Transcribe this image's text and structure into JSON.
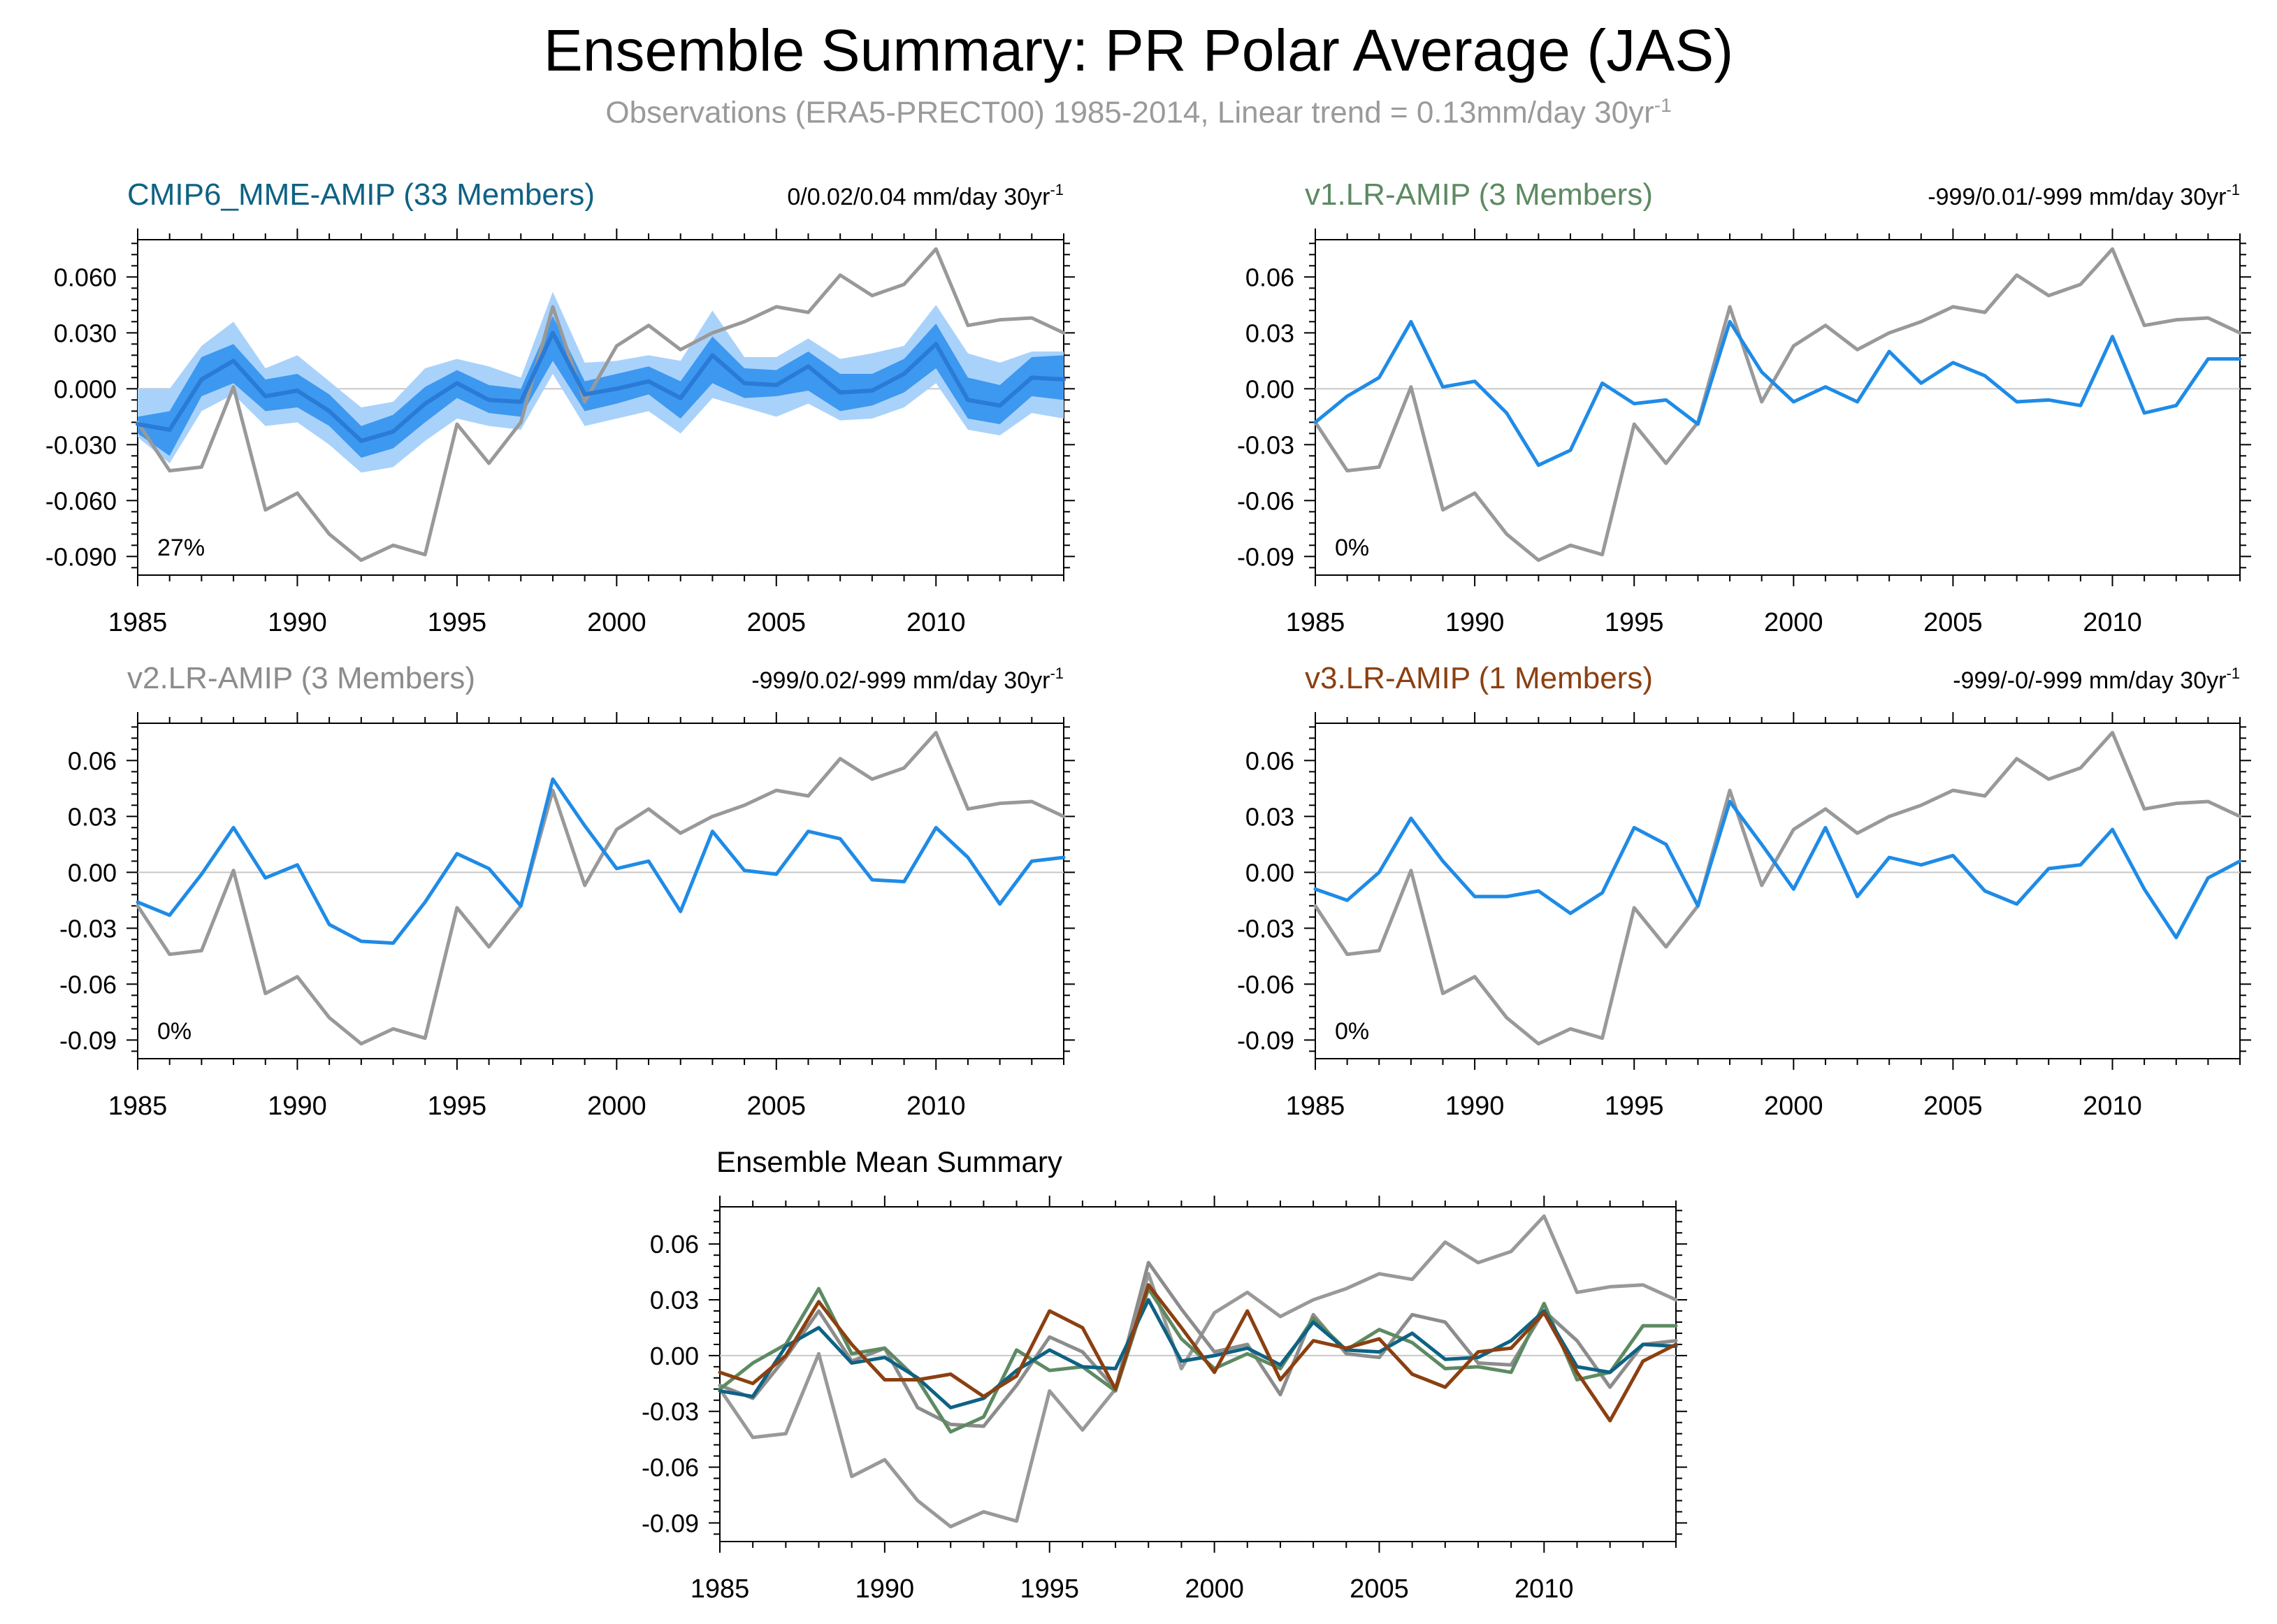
{
  "title": "Ensemble Summary: PR Polar Average (JAS)",
  "subtitle": "Observations (ERA5-PRECT00) 1985-2014, Linear trend = 0.13mm/day 30yr",
  "subtitle_sup": "-1",
  "colors": {
    "obs": "#999999",
    "model_line": "#1f8be6",
    "band_outer": "#a9d2fb",
    "band_inner": "#3d98f0",
    "mme_mean": "#2a7bd6",
    "cmip6": "#0e6284",
    "v1": "#5d8a62",
    "v2": "#8c8c8c",
    "v3": "#8b4011",
    "zero_line": "#c8c8c8"
  },
  "chart_data": [
    {
      "id": "cmip6",
      "type": "line",
      "title": "CMIP6_MME-AMIP (33 Members)",
      "title_color": "#0e6284",
      "trend_label": "0/0.02/0.04 mm/day 30yr",
      "trend_sup": "-1",
      "percent_label": "27%",
      "ylim": [
        -0.1,
        0.08
      ],
      "yticks": [
        "0.060",
        "0.030",
        "0.000",
        "-0.030",
        "-0.060",
        "-0.090"
      ],
      "ytick_values": [
        0.06,
        0.03,
        0.0,
        -0.03,
        -0.06,
        -0.09
      ],
      "xticks": [
        "1985",
        "1990",
        "1995",
        "2000",
        "2005",
        "2010"
      ],
      "x": [
        1985,
        1986,
        1987,
        1988,
        1989,
        1990,
        1991,
        1992,
        1993,
        1994,
        1995,
        1996,
        1997,
        1998,
        1999,
        2000,
        2001,
        2002,
        2003,
        2004,
        2005,
        2006,
        2007,
        2008,
        2009,
        2010,
        2011,
        2012,
        2013,
        2014
      ],
      "obs": [
        -0.018,
        -0.044,
        -0.042,
        0.001,
        -0.065,
        -0.056,
        -0.078,
        -0.092,
        -0.084,
        -0.089,
        -0.019,
        -0.04,
        -0.018,
        0.044,
        -0.007,
        0.023,
        0.034,
        0.021,
        0.03,
        0.036,
        0.044,
        0.041,
        0.061,
        0.05,
        0.056,
        0.075,
        0.034,
        0.037,
        0.038,
        0.03
      ],
      "band": {
        "mean": [
          -0.019,
          -0.022,
          0.005,
          0.015,
          -0.004,
          -0.001,
          -0.012,
          -0.028,
          -0.023,
          -0.008,
          0.003,
          -0.006,
          -0.007,
          0.03,
          -0.003,
          0.0,
          0.004,
          -0.005,
          0.018,
          0.003,
          0.002,
          0.012,
          -0.002,
          -0.001,
          0.008,
          0.024,
          -0.006,
          -0.009,
          0.006,
          0.005
        ],
        "inner_low": [
          -0.024,
          -0.036,
          -0.004,
          0.003,
          -0.012,
          -0.01,
          -0.02,
          -0.037,
          -0.032,
          -0.018,
          -0.005,
          -0.013,
          -0.015,
          0.015,
          -0.012,
          -0.008,
          -0.003,
          -0.016,
          0.003,
          -0.005,
          -0.004,
          -0.001,
          -0.012,
          -0.009,
          -0.002,
          0.011,
          -0.016,
          -0.019,
          -0.004,
          -0.006
        ],
        "inner_high": [
          -0.015,
          -0.012,
          0.017,
          0.024,
          0.005,
          0.008,
          -0.003,
          -0.02,
          -0.014,
          0.001,
          0.01,
          0.002,
          0.0,
          0.039,
          0.004,
          0.008,
          0.012,
          0.004,
          0.028,
          0.011,
          0.01,
          0.02,
          0.008,
          0.008,
          0.016,
          0.035,
          0.006,
          0.002,
          0.017,
          0.018
        ],
        "outer_low": [
          -0.026,
          -0.04,
          -0.012,
          -0.003,
          -0.02,
          -0.018,
          -0.03,
          -0.045,
          -0.042,
          -0.028,
          -0.016,
          -0.02,
          -0.022,
          0.008,
          -0.02,
          -0.016,
          -0.012,
          -0.024,
          -0.005,
          -0.01,
          -0.015,
          -0.008,
          -0.017,
          -0.016,
          -0.01,
          0.003,
          -0.022,
          -0.025,
          -0.013,
          -0.016
        ],
        "outer_high": [
          0.0,
          0.0,
          0.023,
          0.036,
          0.011,
          0.018,
          0.004,
          -0.01,
          -0.007,
          0.011,
          0.016,
          0.012,
          0.006,
          0.052,
          0.014,
          0.015,
          0.018,
          0.015,
          0.042,
          0.017,
          0.017,
          0.027,
          0.016,
          0.019,
          0.023,
          0.045,
          0.019,
          0.014,
          0.02,
          0.02
        ]
      }
    },
    {
      "id": "v1",
      "type": "line",
      "title": "v1.LR-AMIP (3 Members)",
      "title_color": "#5d8a62",
      "trend_label": "-999/0.01/-999 mm/day 30yr",
      "trend_sup": "-1",
      "percent_label": "0%",
      "ylim": [
        -0.1,
        0.08
      ],
      "yticks": [
        "0.06",
        "0.03",
        "0.00",
        "-0.03",
        "-0.06",
        "-0.09"
      ],
      "ytick_values": [
        0.06,
        0.03,
        0.0,
        -0.03,
        -0.06,
        -0.09
      ],
      "xticks": [
        "1985",
        "1990",
        "1995",
        "2000",
        "2005",
        "2010"
      ],
      "x": [
        1985,
        1986,
        1987,
        1988,
        1989,
        1990,
        1991,
        1992,
        1993,
        1994,
        1995,
        1996,
        1997,
        1998,
        1999,
        2000,
        2001,
        2002,
        2003,
        2004,
        2005,
        2006,
        2007,
        2008,
        2009,
        2010,
        2011,
        2012,
        2013,
        2014
      ],
      "obs": [
        -0.018,
        -0.044,
        -0.042,
        0.001,
        -0.065,
        -0.056,
        -0.078,
        -0.092,
        -0.084,
        -0.089,
        -0.019,
        -0.04,
        -0.018,
        0.044,
        -0.007,
        0.023,
        0.034,
        0.021,
        0.03,
        0.036,
        0.044,
        0.041,
        0.061,
        0.05,
        0.056,
        0.075,
        0.034,
        0.037,
        0.038,
        0.03
      ],
      "model": [
        -0.018,
        -0.004,
        0.006,
        0.036,
        0.001,
        0.004,
        -0.013,
        -0.041,
        -0.033,
        0.003,
        -0.008,
        -0.006,
        -0.019,
        0.036,
        0.009,
        -0.007,
        0.001,
        -0.007,
        0.02,
        0.003,
        0.014,
        0.007,
        -0.007,
        -0.006,
        -0.009,
        0.028,
        -0.013,
        -0.009,
        0.016,
        0.016
      ]
    },
    {
      "id": "v2",
      "type": "line",
      "title": "v2.LR-AMIP (3 Members)",
      "title_color": "#8c8c8c",
      "trend_label": "-999/0.02/-999 mm/day 30yr",
      "trend_sup": "-1",
      "percent_label": "0%",
      "ylim": [
        -0.1,
        0.08
      ],
      "yticks": [
        "0.06",
        "0.03",
        "0.00",
        "-0.03",
        "-0.06",
        "-0.09"
      ],
      "ytick_values": [
        0.06,
        0.03,
        0.0,
        -0.03,
        -0.06,
        -0.09
      ],
      "xticks": [
        "1985",
        "1990",
        "1995",
        "2000",
        "2005",
        "2010"
      ],
      "x": [
        1985,
        1986,
        1987,
        1988,
        1989,
        1990,
        1991,
        1992,
        1993,
        1994,
        1995,
        1996,
        1997,
        1998,
        1999,
        2000,
        2001,
        2002,
        2003,
        2004,
        2005,
        2006,
        2007,
        2008,
        2009,
        2010,
        2011,
        2012,
        2013,
        2014
      ],
      "obs": [
        -0.018,
        -0.044,
        -0.042,
        0.001,
        -0.065,
        -0.056,
        -0.078,
        -0.092,
        -0.084,
        -0.089,
        -0.019,
        -0.04,
        -0.018,
        0.044,
        -0.007,
        0.023,
        0.034,
        0.021,
        0.03,
        0.036,
        0.044,
        0.041,
        0.061,
        0.05,
        0.056,
        0.075,
        0.034,
        0.037,
        0.038,
        0.03
      ],
      "model": [
        -0.016,
        -0.023,
        -0.001,
        0.024,
        -0.003,
        0.004,
        -0.028,
        -0.037,
        -0.038,
        -0.016,
        0.01,
        0.002,
        -0.018,
        0.05,
        0.025,
        0.002,
        0.006,
        -0.021,
        0.022,
        0.001,
        -0.001,
        0.022,
        0.018,
        -0.004,
        -0.005,
        0.024,
        0.008,
        -0.017,
        0.006,
        0.008
      ]
    },
    {
      "id": "v3",
      "type": "line",
      "title": "v3.LR-AMIP (1 Members)",
      "title_color": "#8b4011",
      "trend_label": "-999/-0/-999 mm/day 30yr",
      "trend_sup": "-1",
      "percent_label": "0%",
      "ylim": [
        -0.1,
        0.08
      ],
      "yticks": [
        "0.06",
        "0.03",
        "0.00",
        "-0.03",
        "-0.06",
        "-0.09"
      ],
      "ytick_values": [
        0.06,
        0.03,
        0.0,
        -0.03,
        -0.06,
        -0.09
      ],
      "xticks": [
        "1985",
        "1990",
        "1995",
        "2000",
        "2005",
        "2010"
      ],
      "x": [
        1985,
        1986,
        1987,
        1988,
        1989,
        1990,
        1991,
        1992,
        1993,
        1994,
        1995,
        1996,
        1997,
        1998,
        1999,
        2000,
        2001,
        2002,
        2003,
        2004,
        2005,
        2006,
        2007,
        2008,
        2009,
        2010,
        2011,
        2012,
        2013,
        2014
      ],
      "obs": [
        -0.018,
        -0.044,
        -0.042,
        0.001,
        -0.065,
        -0.056,
        -0.078,
        -0.092,
        -0.084,
        -0.089,
        -0.019,
        -0.04,
        -0.018,
        0.044,
        -0.007,
        0.023,
        0.034,
        0.021,
        0.03,
        0.036,
        0.044,
        0.041,
        0.061,
        0.05,
        0.056,
        0.075,
        0.034,
        0.037,
        0.038,
        0.03
      ],
      "model": [
        -0.009,
        -0.015,
        0.0,
        0.029,
        0.006,
        -0.013,
        -0.013,
        -0.01,
        -0.022,
        -0.011,
        0.024,
        0.015,
        -0.018,
        0.038,
        0.015,
        -0.009,
        0.024,
        -0.013,
        0.008,
        0.004,
        0.009,
        -0.01,
        -0.017,
        0.002,
        0.004,
        0.023,
        -0.009,
        -0.035,
        -0.003,
        0.006
      ]
    },
    {
      "id": "summary",
      "type": "line",
      "title": "Ensemble Mean Summary",
      "title_color": "#000000",
      "ylim": [
        -0.1,
        0.08
      ],
      "yticks": [
        "0.06",
        "0.03",
        "0.00",
        "-0.03",
        "-0.06",
        "-0.09"
      ],
      "ytick_values": [
        0.06,
        0.03,
        0.0,
        -0.03,
        -0.06,
        -0.09
      ],
      "xticks": [
        "1985",
        "1990",
        "1995",
        "2000",
        "2005",
        "2010"
      ],
      "x": [
        1985,
        1986,
        1987,
        1988,
        1989,
        1990,
        1991,
        1992,
        1993,
        1994,
        1995,
        1996,
        1997,
        1998,
        1999,
        2000,
        2001,
        2002,
        2003,
        2004,
        2005,
        2006,
        2007,
        2008,
        2009,
        2010,
        2011,
        2012,
        2013,
        2014
      ],
      "series": [
        {
          "key": "obs",
          "values": [
            -0.018,
            -0.044,
            -0.042,
            0.001,
            -0.065,
            -0.056,
            -0.078,
            -0.092,
            -0.084,
            -0.089,
            -0.019,
            -0.04,
            -0.018,
            0.044,
            -0.007,
            0.023,
            0.034,
            0.021,
            0.03,
            0.036,
            0.044,
            0.041,
            0.061,
            0.05,
            0.056,
            0.075,
            0.034,
            0.037,
            0.038,
            0.03
          ]
        },
        {
          "key": "v2",
          "values": [
            -0.016,
            -0.023,
            -0.001,
            0.024,
            -0.003,
            0.004,
            -0.028,
            -0.037,
            -0.038,
            -0.016,
            0.01,
            0.002,
            -0.018,
            0.05,
            0.025,
            0.002,
            0.006,
            -0.021,
            0.022,
            0.001,
            -0.001,
            0.022,
            0.018,
            -0.004,
            -0.005,
            0.024,
            0.008,
            -0.017,
            0.006,
            0.008
          ]
        },
        {
          "key": "v1",
          "values": [
            -0.018,
            -0.004,
            0.006,
            0.036,
            0.001,
            0.004,
            -0.013,
            -0.041,
            -0.033,
            0.003,
            -0.008,
            -0.006,
            -0.019,
            0.036,
            0.009,
            -0.007,
            0.001,
            -0.007,
            0.02,
            0.003,
            0.014,
            0.007,
            -0.007,
            -0.006,
            -0.009,
            0.028,
            -0.013,
            -0.009,
            0.016,
            0.016
          ]
        },
        {
          "key": "cmip6",
          "values": [
            -0.019,
            -0.022,
            0.005,
            0.015,
            -0.004,
            -0.001,
            -0.012,
            -0.028,
            -0.023,
            -0.008,
            0.003,
            -0.006,
            -0.007,
            0.03,
            -0.003,
            0.0,
            0.004,
            -0.005,
            0.018,
            0.003,
            0.002,
            0.012,
            -0.002,
            -0.001,
            0.008,
            0.024,
            -0.006,
            -0.009,
            0.006,
            0.005
          ]
        },
        {
          "key": "v3",
          "values": [
            -0.009,
            -0.015,
            0.0,
            0.029,
            0.006,
            -0.013,
            -0.013,
            -0.01,
            -0.022,
            -0.011,
            0.024,
            0.015,
            -0.018,
            0.038,
            0.015,
            -0.009,
            0.024,
            -0.013,
            0.008,
            0.004,
            0.009,
            -0.01,
            -0.017,
            0.002,
            0.004,
            0.023,
            -0.009,
            -0.035,
            -0.003,
            0.006
          ]
        }
      ]
    }
  ]
}
